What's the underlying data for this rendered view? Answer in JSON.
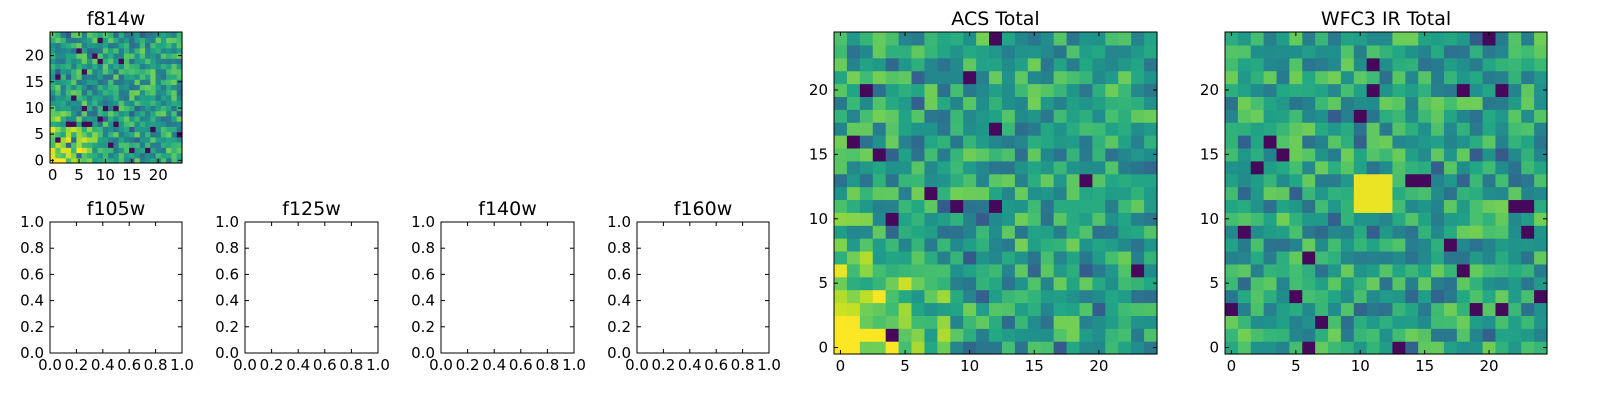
{
  "chart_data": [
    {
      "type": "heatmap",
      "title": "f814w",
      "grid_size": 25,
      "colormap": "viridis",
      "xticks": [
        0,
        5,
        10,
        15,
        20
      ],
      "yticks": [
        0,
        5,
        10,
        15,
        20
      ],
      "style": "bright-lower-left",
      "seed": 11
    },
    {
      "type": "empty",
      "title": "f105w",
      "xticks": [
        "0.0",
        "0.2",
        "0.4",
        "0.6",
        "0.8",
        "1.0"
      ],
      "yticks": [
        "0.0",
        "0.2",
        "0.4",
        "0.6",
        "0.8",
        "1.0"
      ]
    },
    {
      "type": "empty",
      "title": "f125w",
      "xticks": [
        "0.0",
        "0.2",
        "0.4",
        "0.6",
        "0.8",
        "1.0"
      ],
      "yticks": [
        "0.0",
        "0.2",
        "0.4",
        "0.6",
        "0.8",
        "1.0"
      ]
    },
    {
      "type": "empty",
      "title": "f140w",
      "xticks": [
        "0.0",
        "0.2",
        "0.4",
        "0.6",
        "0.8",
        "1.0"
      ],
      "yticks": [
        "0.0",
        "0.2",
        "0.4",
        "0.6",
        "0.8",
        "1.0"
      ]
    },
    {
      "type": "empty",
      "title": "f160w",
      "xticks": [
        "0.0",
        "0.2",
        "0.4",
        "0.6",
        "0.8",
        "1.0"
      ],
      "yticks": [
        "0.0",
        "0.2",
        "0.4",
        "0.6",
        "0.8",
        "1.0"
      ]
    },
    {
      "type": "heatmap",
      "title": "ACS Total",
      "grid_size": 25,
      "colormap": "viridis",
      "xticks": [
        0,
        5,
        10,
        15,
        20
      ],
      "yticks": [
        0,
        5,
        10,
        15,
        20
      ],
      "style": "bright-lower-left",
      "seed": 42
    },
    {
      "type": "heatmap",
      "title": "WFC3 IR Total",
      "grid_size": 25,
      "colormap": "viridis",
      "xticks": [
        0,
        5,
        10,
        15,
        20
      ],
      "yticks": [
        0,
        5,
        10,
        15,
        20
      ],
      "style": "bright-center",
      "seed": 97
    }
  ]
}
